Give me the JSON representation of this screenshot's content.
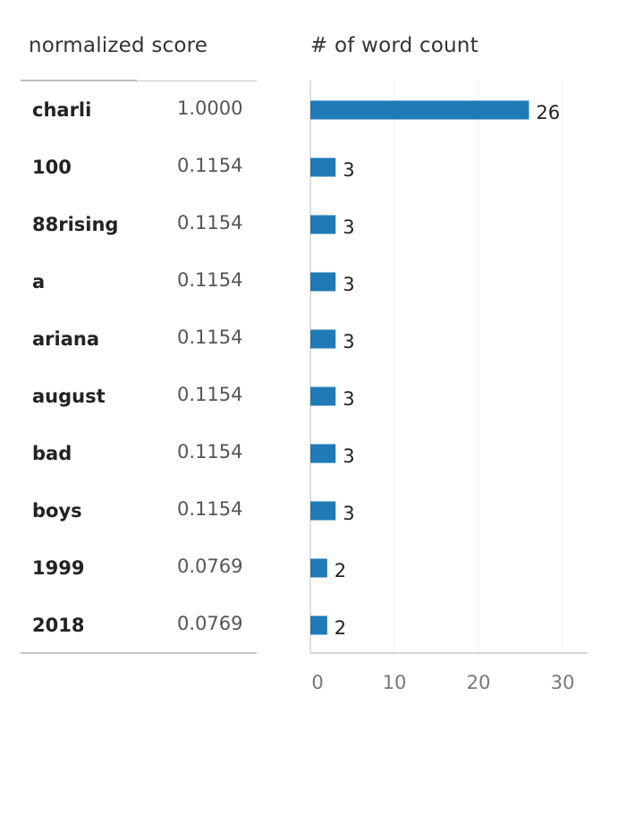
{
  "table": {
    "score_header": "normalized score",
    "count_header": "# of word count"
  },
  "chart_data": {
    "type": "bar",
    "orientation": "horizontal",
    "categories": [
      "charli",
      "100",
      "88rising",
      "a",
      "ariana",
      "august",
      "bad",
      "boys",
      "1999",
      "2018"
    ],
    "normalized_scores": [
      "1.0000",
      "0.1154",
      "0.1154",
      "0.1154",
      "0.1154",
      "0.1154",
      "0.1154",
      "0.1154",
      "0.0769",
      "0.0769"
    ],
    "values": [
      26,
      3,
      3,
      3,
      3,
      3,
      3,
      3,
      2,
      2
    ],
    "xlabel": "# of word count",
    "xlim": [
      0,
      33
    ],
    "xticks": [
      0,
      10,
      20,
      30
    ],
    "grid": true,
    "bar_color": "#1f7bb6"
  }
}
